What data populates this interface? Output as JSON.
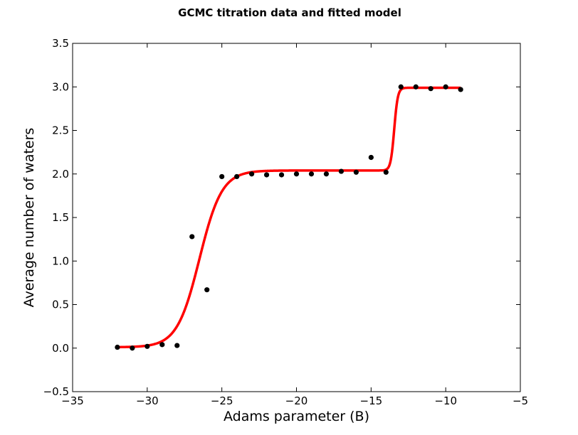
{
  "chart_data": {
    "type": "scatter",
    "title": "GCMC titration data and fitted model",
    "xlabel": "Adams parameter (B)",
    "ylabel": "Average number of waters",
    "xlim": [
      -35,
      -5
    ],
    "ylim": [
      -0.5,
      3.5
    ],
    "xticks": [
      -35,
      -30,
      -25,
      -20,
      -15,
      -10,
      -5
    ],
    "xtick_labels": [
      "−35",
      "−30",
      "−25",
      "−20",
      "−15",
      "−10",
      "−5"
    ],
    "yticks": [
      -0.5,
      0.0,
      0.5,
      1.0,
      1.5,
      2.0,
      2.5,
      3.0,
      3.5
    ],
    "ytick_labels": [
      "−0.5",
      "0.0",
      "0.5",
      "1.0",
      "1.5",
      "2.0",
      "2.5",
      "3.0",
      "3.5"
    ],
    "grid": false,
    "legend": "none",
    "series": [
      {
        "kind": "scatter",
        "color": "#000000",
        "x": [
          -32,
          -31,
          -30,
          -29,
          -28,
          -27,
          -26,
          -25,
          -24,
          -23,
          -22,
          -21,
          -20,
          -19,
          -18,
          -17,
          -16,
          -15,
          -14,
          -13,
          -12,
          -11,
          -10,
          -9
        ],
        "y": [
          0.01,
          0.0,
          0.02,
          0.04,
          0.03,
          1.28,
          0.67,
          1.97,
          1.97,
          2.0,
          1.99,
          1.99,
          2.0,
          2.0,
          2.0,
          2.03,
          2.02,
          2.19,
          2.02,
          3.0,
          3.0,
          2.98,
          3.0,
          2.97
        ]
      },
      {
        "kind": "line",
        "color": "#ff0000",
        "model": {
          "x_start": -32,
          "x_end": -9,
          "step1_midpoint": -26.5,
          "step1_width": 0.75,
          "step1_height": 2.03,
          "step2_midpoint": -13.45,
          "step2_width": 0.12,
          "step2_height": 0.95,
          "baseline": 0.01
        }
      }
    ]
  }
}
